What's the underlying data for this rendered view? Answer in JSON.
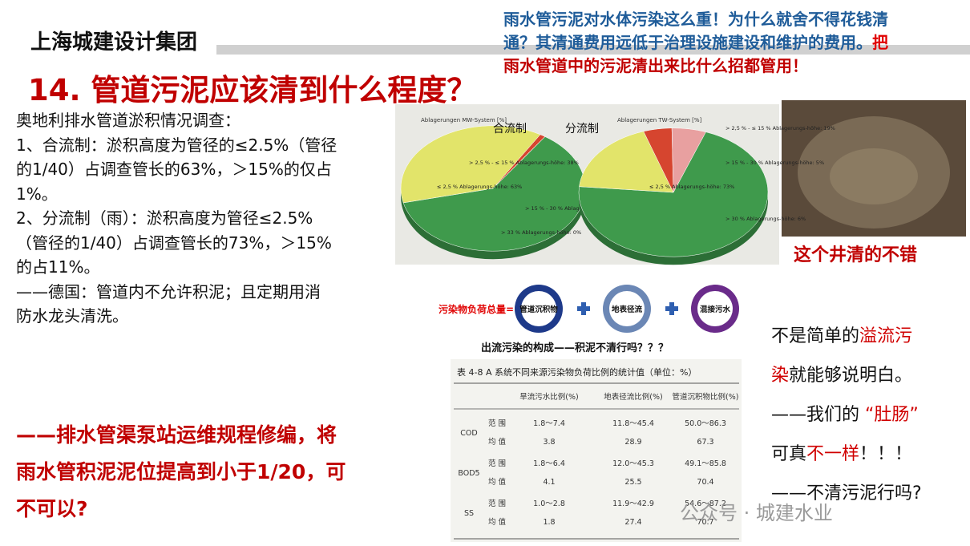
{
  "header": {
    "brand": "上海城建设计集团",
    "title": "14. 管道污泥应该清到什么程度？"
  },
  "note": {
    "lines": [
      [
        {
          "text": "雨水管污泥对水体污染这么重！为什么就舍不得花钱清",
          "color": "#1f5c99"
        }
      ],
      [
        {
          "text": "通？其清通费用远低于治理设施建设和维护的费用。",
          "color": "#1f5c99"
        },
        {
          "text": "把",
          "color": "#e00000"
        }
      ],
      [
        {
          "text": "雨水管道中的污泥清出来比什么招都管用！",
          "color": "#c00000"
        }
      ]
    ]
  },
  "body": {
    "lines": [
      "奥地利排水管道淤积情况调查：",
      "1、合流制：淤积高度为管径的≤2.5%（管径",
      "的1/40）占调查管长的63%，＞15%的仅占",
      "1%。",
      "2、分流制（雨）：淤积高度为管径≤2.5%",
      "（管径的1/40）占调查管长的73%，＞15%",
      "的占11%。",
      "——德国：管道内不允许积泥；且定期用消",
      "防水龙头清洗。"
    ],
    "conclusion": [
      "——排水管渠泵站运维规程修编，将",
      "雨水管积泥泥位提高到小于1/20，可",
      "不可以?"
    ]
  },
  "pies": [
    {
      "title": "Ablagerungen MW-System [%]",
      "label": "合流制",
      "segments": [
        {
          "label": "≤ 2,5 % Ablagerungs-höhe: 63%",
          "value": 63,
          "color": "#3f9a4c"
        },
        {
          "label": "> 2,5 % - ≤ 15 % Ablagerungs-höhe: 38%",
          "value": 38,
          "color": "#e2e46a"
        },
        {
          "label": "> 15 % - 30 % Ablagerungs-höhe: 1%",
          "value": 1,
          "color": "#d6452f"
        },
        {
          "label": "> 33 % Ablagerungs-höhe: 0%",
          "value": 0,
          "color": "#e8a0a0"
        }
      ]
    },
    {
      "title": "Ablagerungen TW-System [%]",
      "label": "分流制",
      "segments": [
        {
          "label": "≤ 2,5 % Ablagerungs-höhe: 73%",
          "value": 73,
          "color": "#3f9a4c"
        },
        {
          "label": "> 2,5 % - ≤ 15 % Ablagerungs-höhe: 19%",
          "value": 19,
          "color": "#e2e46a"
        },
        {
          "label": "> 15 % - 30 % Ablagerungs-höhe: 5%",
          "value": 5,
          "color": "#d6452f"
        },
        {
          "label": "> 30 % Ablagerungs-höhe: 6%",
          "value": 6,
          "color": "#e8a0a0"
        }
      ]
    }
  ],
  "photo": {
    "caption": "这个井清的不错"
  },
  "diagram": {
    "lead": "污染物负荷总量=",
    "nodes": [
      "管道沉积物",
      "地表径流",
      "混接污水"
    ],
    "caption": "出流污染的构成——积泥不清行吗？？？"
  },
  "table": {
    "title": "表 4-8  A 系统不同来源污染物负荷比例的统计值（单位：%）",
    "header": [
      "旱流污水比例(%)",
      "地表径流比例(%)",
      "管道沉积物比例(%)"
    ],
    "rows": [
      [
        "COD",
        "范 围",
        "1.8～7.4",
        "11.8～45.4",
        "50.0～86.3"
      ],
      [
        "",
        "均 值",
        "3.8",
        "28.9",
        "67.3"
      ],
      [
        "BOD5",
        "范 围",
        "1.8～6.4",
        "12.0～45.3",
        "49.1～85.8"
      ],
      [
        "",
        "均 值",
        "4.1",
        "25.5",
        "70.4"
      ],
      [
        "SS",
        "范 围",
        "1.0～2.8",
        "11.9～42.9",
        "54.6～87.2"
      ],
      [
        "",
        "均 值",
        "1.8",
        "27.4",
        "70.7"
      ]
    ]
  },
  "right": {
    "lines": [
      [
        {
          "text": "不是简单的",
          "color": "#111"
        },
        {
          "text": "溢流污",
          "color": "#d00000"
        }
      ],
      [
        {
          "text": "染",
          "color": "#d00000"
        },
        {
          "text": "就能够说明白。",
          "color": "#111"
        }
      ],
      [
        {
          "text": "——我们的 ",
          "color": "#111"
        },
        {
          "text": "“肚肠”",
          "color": "#d00000"
        }
      ],
      [
        {
          "text": "可真",
          "color": "#111"
        },
        {
          "text": "不一样",
          "color": "#d00000"
        },
        {
          "text": "！！！",
          "color": "#111"
        }
      ],
      [
        {
          "text": "——不清污泥行吗?",
          "color": "#111"
        }
      ]
    ]
  },
  "watermark": "公众号 · 城建水业"
}
